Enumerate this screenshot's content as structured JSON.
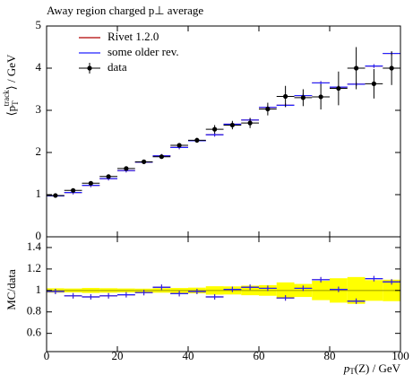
{
  "chart_data": {
    "type": "histogram-ratio",
    "title": "Away region charged p⊥ average",
    "ylabel": [
      "⟨p",
      "T",
      "track",
      "⟩ / GeV"
    ],
    "xlabel": [
      "p",
      "T",
      "(Z) / GeV"
    ],
    "ratio_ylabel": "MC/data",
    "bins": [
      0,
      5,
      10,
      15,
      20,
      25,
      30,
      35,
      40,
      45,
      50,
      55,
      60,
      65,
      70,
      75,
      80,
      85,
      90,
      95,
      100
    ],
    "xlim": [
      0,
      100
    ],
    "xticks": [
      0,
      20,
      40,
      60,
      80,
      100
    ],
    "ylim": [
      0,
      5
    ],
    "yticks": [
      0,
      1,
      2,
      3,
      4,
      5
    ],
    "ratio_ylim": [
      0.43,
      1.5
    ],
    "ratio_yticks": [
      0.6,
      0.8,
      1,
      1.2,
      1.4
    ],
    "band_color": "#ffff00",
    "series": [
      {
        "name": "Rivet 1.2.0",
        "color": "#b00000",
        "values": [
          0.97,
          1.05,
          1.22,
          1.38,
          1.57,
          1.77,
          1.92,
          2.12,
          2.28,
          2.42,
          2.67,
          2.77,
          3.07,
          3.12,
          3.35,
          3.65,
          3.55,
          3.62,
          4.05,
          4.35
        ],
        "ratio": [
          0.99,
          0.95,
          0.94,
          0.95,
          0.96,
          0.98,
          1.03,
          0.97,
          0.99,
          0.94,
          1.01,
          1.03,
          1.02,
          0.93,
          1.02,
          1.1,
          1.01,
          0.9,
          1.11,
          1.08
        ]
      },
      {
        "name": "some older rev.",
        "color": "#2222ff",
        "values": [
          0.97,
          1.05,
          1.22,
          1.38,
          1.57,
          1.77,
          1.92,
          2.12,
          2.28,
          2.42,
          2.67,
          2.77,
          3.07,
          3.12,
          3.35,
          3.65,
          3.55,
          3.62,
          4.05,
          4.35
        ],
        "ratio": [
          0.99,
          0.95,
          0.94,
          0.95,
          0.96,
          0.98,
          1.03,
          0.97,
          0.99,
          0.94,
          1.01,
          1.03,
          1.02,
          0.93,
          1.02,
          1.1,
          1.01,
          0.9,
          1.11,
          1.08
        ]
      },
      {
        "name": "data",
        "color": "#000000",
        "values": [
          0.98,
          1.1,
          1.27,
          1.43,
          1.62,
          1.78,
          1.9,
          2.17,
          2.29,
          2.55,
          2.65,
          2.7,
          3.03,
          3.33,
          3.3,
          3.32,
          3.52,
          4.0,
          3.63,
          4.0
        ],
        "errors": [
          0.02,
          0.02,
          0.03,
          0.03,
          0.03,
          0.03,
          0.04,
          0.05,
          0.06,
          0.1,
          0.1,
          0.12,
          0.15,
          0.25,
          0.2,
          0.3,
          0.4,
          0.5,
          0.35,
          0.4
        ]
      }
    ]
  }
}
